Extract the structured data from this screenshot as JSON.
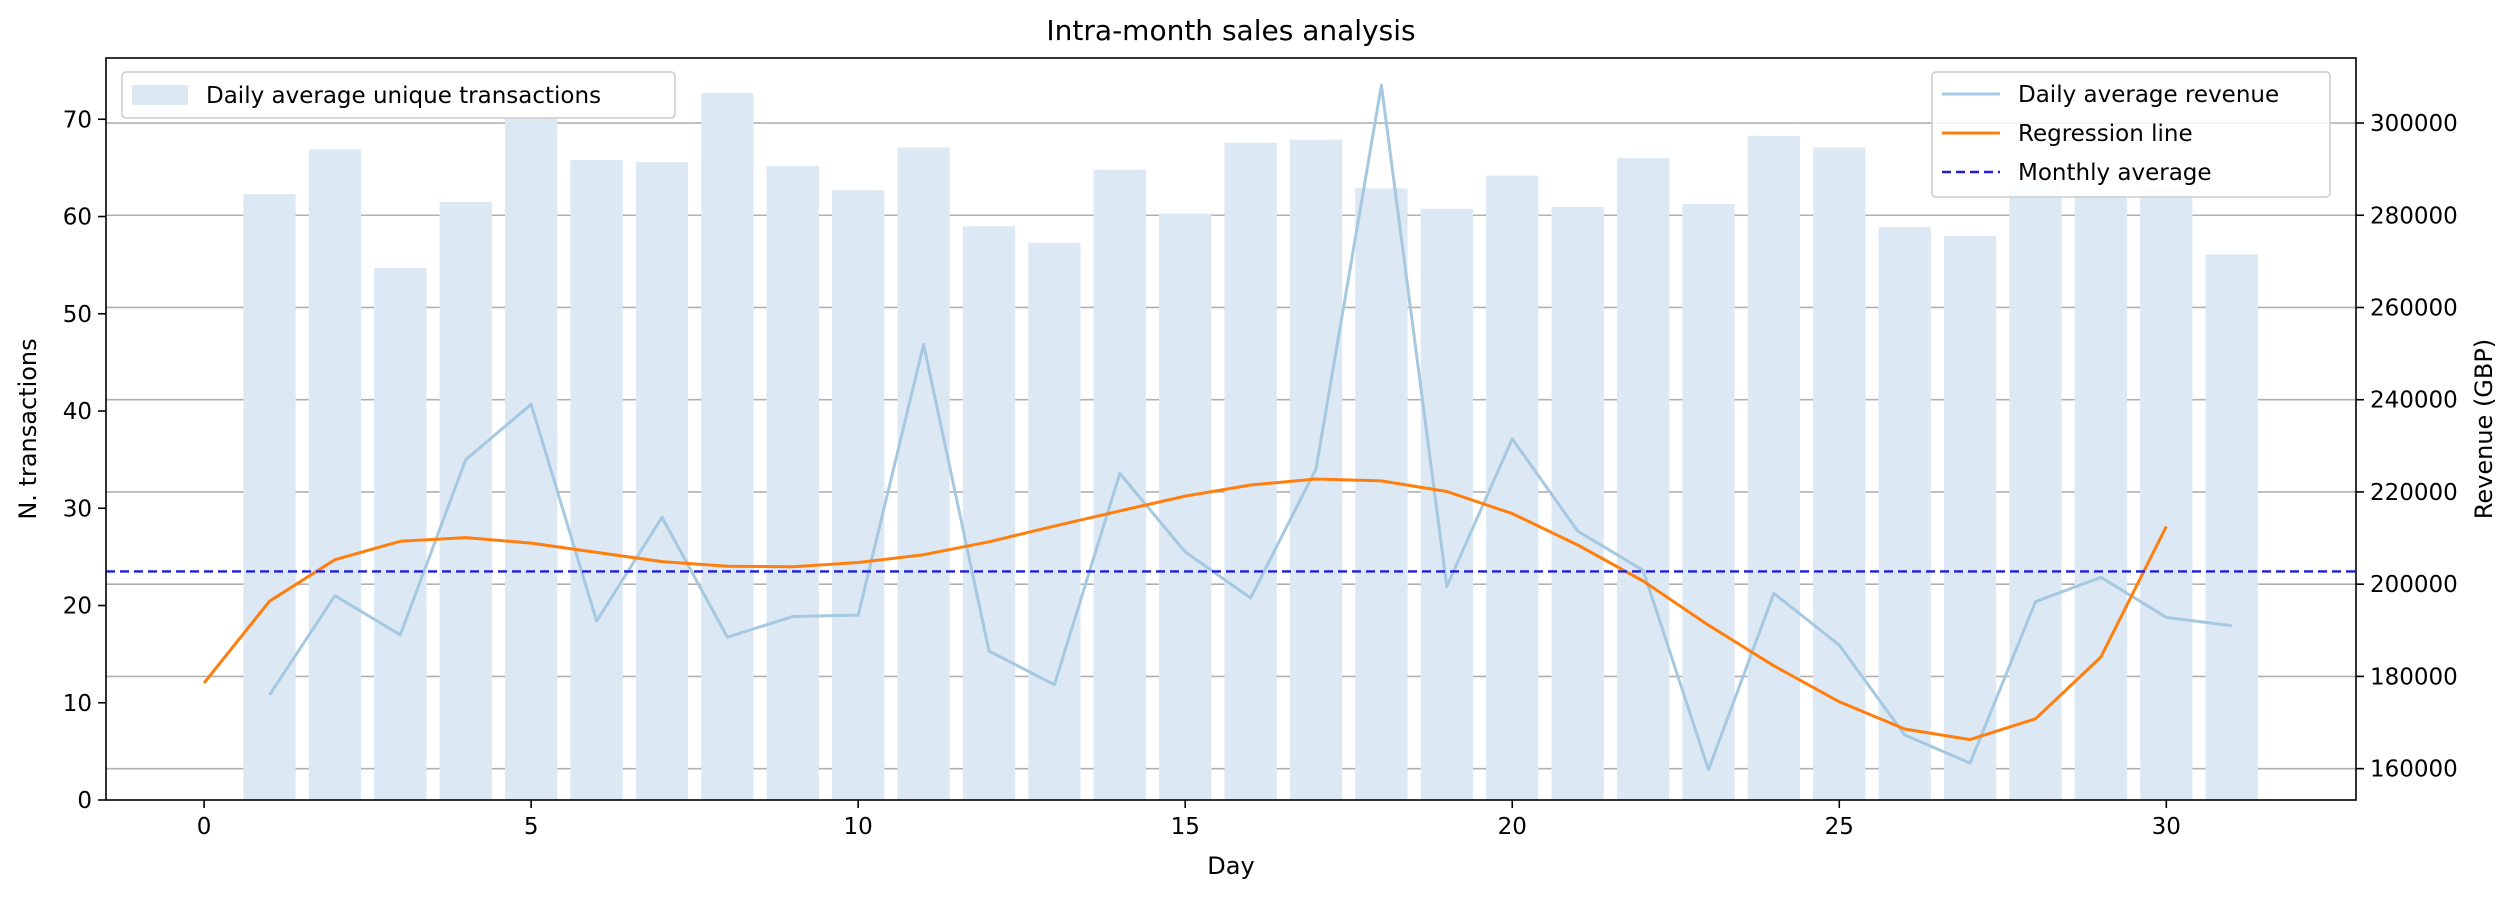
{
  "chart_data": {
    "type": "bar",
    "title": "Intra-month sales analysis",
    "xlabel": "Day",
    "ylabel": "N. transactions",
    "ylabel_right": "Revenue (GBP)",
    "xlim": [
      -1.5,
      32.9
    ],
    "ylim": [
      0,
      76.3
    ],
    "ylim_right": [
      153200,
      314100
    ],
    "x_ticks": [
      0,
      5,
      10,
      15,
      20,
      25,
      30
    ],
    "y_ticks": [
      0,
      10,
      20,
      30,
      40,
      50,
      60,
      70
    ],
    "y_ticks_right": [
      160000,
      180000,
      200000,
      220000,
      240000,
      260000,
      280000,
      300000
    ],
    "grid": "horizontal, right axis",
    "legend_left_position": "top-left",
    "legend_right_position": "top-right",
    "bars": {
      "name": "Daily average unique transactions",
      "color": "#dce8f4",
      "x": [
        1,
        2,
        3,
        4,
        5,
        6,
        7,
        8,
        9,
        10,
        11,
        12,
        13,
        14,
        15,
        16,
        17,
        18,
        19,
        20,
        21,
        22,
        23,
        24,
        25,
        26,
        27,
        28,
        29,
        30,
        31
      ],
      "values": [
        62.3,
        66.9,
        54.7,
        61.5,
        70.3,
        65.8,
        65.6,
        72.7,
        65.2,
        62.7,
        67.1,
        59.0,
        57.3,
        64.8,
        60.3,
        67.6,
        67.9,
        62.9,
        60.8,
        64.2,
        61.0,
        66.0,
        61.3,
        68.3,
        67.1,
        58.9,
        58.0,
        63.2,
        62.1,
        62.7,
        56.1
      ]
    },
    "series": [
      {
        "name": "Daily average revenue",
        "color": "#a6c8e0",
        "x": [
          1,
          2,
          3,
          4,
          5,
          6,
          7,
          8,
          9,
          10,
          11,
          12,
          13,
          14,
          15,
          16,
          17,
          18,
          19,
          20,
          21,
          22,
          23,
          24,
          25,
          26,
          27,
          28,
          29,
          30,
          31
        ],
        "values": [
          176000,
          197500,
          189000,
          227000,
          239000,
          192000,
          214500,
          188500,
          193000,
          193300,
          252000,
          185500,
          178200,
          224000,
          207000,
          197000,
          225000,
          308200,
          199500,
          231500,
          211500,
          203000,
          159800,
          198000,
          186800,
          167300,
          161200,
          196200,
          201500,
          192800,
          191000
        ]
      },
      {
        "name": "Regression line",
        "color": "#ff7f0e",
        "x": [
          0,
          1,
          2,
          3,
          4,
          5,
          6,
          7,
          8,
          9,
          10,
          11,
          12,
          13,
          14,
          15,
          16,
          17,
          18,
          19,
          20,
          21,
          22,
          23,
          24,
          25,
          26,
          27,
          28,
          29,
          30
        ],
        "values": [
          178600,
          196300,
          205300,
          209300,
          210100,
          208900,
          206900,
          204900,
          203900,
          203800,
          204700,
          206400,
          209200,
          212600,
          215900,
          219100,
          221500,
          222800,
          222400,
          220100,
          215300,
          208500,
          200700,
          191100,
          182300,
          174500,
          168600,
          166300,
          170800,
          184200,
          212500
        ]
      }
    ],
    "reference_line": {
      "name": "Monthly average",
      "color": "#1f1fdb",
      "value_left": 23.5
    }
  }
}
